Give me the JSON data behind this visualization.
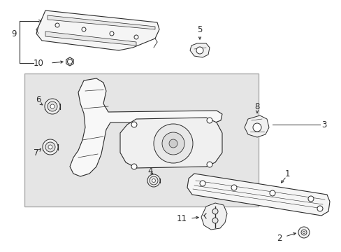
{
  "bg_color": "#ffffff",
  "line_color": "#2a2a2a",
  "box_fill": "#e8e8e8",
  "figsize": [
    4.89,
    3.6
  ],
  "dpi": 100,
  "part_fill": "#f2f2f2",
  "part_edge": "#2a2a2a"
}
